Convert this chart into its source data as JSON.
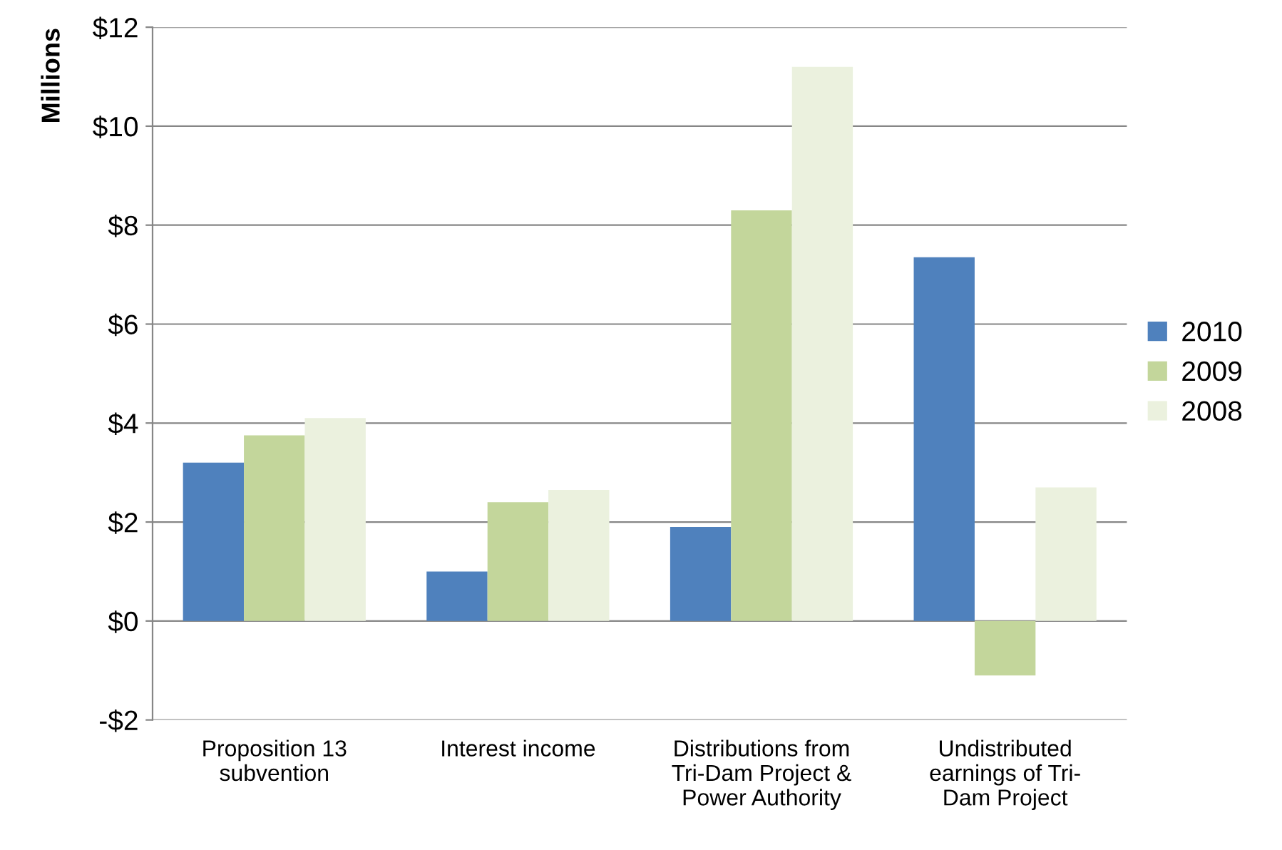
{
  "chart_data": {
    "type": "bar",
    "ylabel": "Millions",
    "categories": [
      "Proposition 13\nsubvention",
      "Interest income",
      "Distributions from\nTri-Dam Project &\nPower Authority",
      "Undistributed\nearnings of Tri-\nDam Project"
    ],
    "series": [
      {
        "name": "2010",
        "color": "#4f81bd",
        "values": [
          3.2,
          1.0,
          1.9,
          7.35
        ]
      },
      {
        "name": "2009",
        "color": "#c3d69b",
        "values": [
          3.75,
          2.4,
          8.3,
          -1.1
        ]
      },
      {
        "name": "2008",
        "color": "#ebf1de",
        "values": [
          4.1,
          2.65,
          11.2,
          2.7
        ]
      }
    ],
    "ylim": [
      -2,
      12
    ],
    "yticks": [
      {
        "value": -2,
        "label": "-$2"
      },
      {
        "value": 0,
        "label": "$0"
      },
      {
        "value": 2,
        "label": "$2"
      },
      {
        "value": 4,
        "label": "$4"
      },
      {
        "value": 6,
        "label": "$6"
      },
      {
        "value": 8,
        "label": "$8"
      },
      {
        "value": 10,
        "label": "$10"
      },
      {
        "value": 12,
        "label": "$12"
      }
    ],
    "grid": "y",
    "legend": "right"
  }
}
